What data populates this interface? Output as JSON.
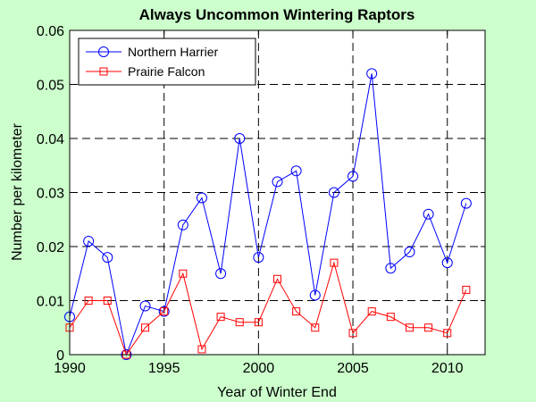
{
  "colors": {
    "figure_background": "#ccffcc",
    "plot_background": "#ffffff",
    "axis": "#000000",
    "grid": "#000000",
    "northern_harrier": "#0000ff",
    "prairie_falcon": "#ff0000"
  },
  "chart_data": {
    "type": "line",
    "title": "Always Uncommon Wintering Raptors",
    "xlabel": "Year of Winter End",
    "ylabel": "Number per kilometer",
    "xlim": [
      1990,
      2012
    ],
    "ylim": [
      0,
      0.06
    ],
    "xticks": [
      1990,
      1995,
      2000,
      2005,
      2010
    ],
    "xtick_labels": [
      "1990",
      "1995",
      "2000",
      "2005",
      "2010"
    ],
    "yticks": [
      0,
      0.01,
      0.02,
      0.03,
      0.04,
      0.05,
      0.06
    ],
    "ytick_labels": [
      "0",
      "0.01",
      "0.02",
      "0.03",
      "0.04",
      "0.05",
      "0.06"
    ],
    "grid": "dashed",
    "legend_position": "top-left",
    "x": [
      1990,
      1991,
      1992,
      1993,
      1994,
      1995,
      1996,
      1997,
      1998,
      1999,
      2000,
      2001,
      2002,
      2003,
      2004,
      2005,
      2006,
      2007,
      2008,
      2009,
      2010,
      2011
    ],
    "series": [
      {
        "name": "Northern Harrier",
        "color": "#0000ff",
        "marker": "circle",
        "values": [
          0.007,
          0.021,
          0.018,
          0.0,
          0.009,
          0.008,
          0.024,
          0.029,
          0.015,
          0.04,
          0.018,
          0.032,
          0.034,
          0.011,
          0.03,
          0.033,
          0.052,
          0.016,
          0.019,
          0.026,
          0.017,
          0.028
        ]
      },
      {
        "name": "Prairie Falcon",
        "color": "#ff0000",
        "marker": "square",
        "values": [
          0.005,
          0.01,
          0.01,
          0.0,
          0.005,
          0.008,
          0.015,
          0.001,
          0.007,
          0.006,
          0.006,
          0.014,
          0.008,
          0.005,
          0.017,
          0.004,
          0.008,
          0.007,
          0.005,
          0.005,
          0.004,
          0.012
        ]
      }
    ]
  }
}
